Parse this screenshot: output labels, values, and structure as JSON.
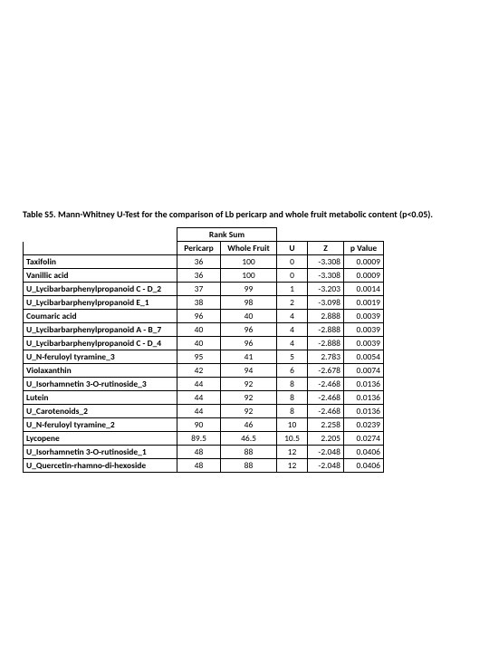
{
  "caption": "Table S5. Mann-Whitney U-Test for the comparison of Lb pericarp and whole fruit metabolic content (p<0.05).",
  "headers": {
    "rank_sum": "Rank Sum",
    "pericarp": "Pericarp",
    "whole_fruit": "Whole Fruit",
    "u": "U",
    "z": "Z",
    "p": "p Value"
  },
  "columns": {
    "name_width": 170,
    "pericarp_width": 48,
    "whole_width": 62,
    "u_width": 34,
    "z_width": 40,
    "p_width": 44
  },
  "rows": [
    {
      "name": "Taxifolin",
      "pericarp": "36",
      "whole": "100",
      "u": "0",
      "z": "-3.308",
      "p": "0.0009"
    },
    {
      "name": "Vanillic acid",
      "pericarp": "36",
      "whole": "100",
      "u": "0",
      "z": "-3.308",
      "p": "0.0009"
    },
    {
      "name": "U_Lycibarbarphenylpropanoid C - D_2",
      "pericarp": "37",
      "whole": "99",
      "u": "1",
      "z": "-3.203",
      "p": "0.0014"
    },
    {
      "name": "U_Lycibarbarphenylpropanoid E_1",
      "pericarp": "38",
      "whole": "98",
      "u": "2",
      "z": "-3.098",
      "p": "0.0019"
    },
    {
      "name": "Coumaric acid",
      "pericarp": "96",
      "whole": "40",
      "u": "4",
      "z": "2.888",
      "p": "0.0039"
    },
    {
      "name": "U_Lycibarbarphenylpropanoid A - B_7",
      "pericarp": "40",
      "whole": "96",
      "u": "4",
      "z": "-2.888",
      "p": "0.0039"
    },
    {
      "name": "U_Lycibarbarphenylpropanoid C - D_4",
      "pericarp": "40",
      "whole": "96",
      "u": "4",
      "z": "-2.888",
      "p": "0.0039"
    },
    {
      "name": "U_N-feruloyl tyramine_3",
      "pericarp": "95",
      "whole": "41",
      "u": "5",
      "z": "2.783",
      "p": "0.0054"
    },
    {
      "name": "Violaxanthin",
      "pericarp": "42",
      "whole": "94",
      "u": "6",
      "z": "-2.678",
      "p": "0.0074"
    },
    {
      "name": "U_Isorhamnetin 3-O-rutinoside_3",
      "pericarp": "44",
      "whole": "92",
      "u": "8",
      "z": "-2.468",
      "p": "0.0136"
    },
    {
      "name": "Lutein",
      "pericarp": "44",
      "whole": "92",
      "u": "8",
      "z": "-2.468",
      "p": "0.0136"
    },
    {
      "name": "U_Carotenoids_2",
      "pericarp": "44",
      "whole": "92",
      "u": "8",
      "z": "-2.468",
      "p": "0.0136"
    },
    {
      "name": "U_N-feruloyl tyramine_2",
      "pericarp": "90",
      "whole": "46",
      "u": "10",
      "z": "2.258",
      "p": "0.0239"
    },
    {
      "name": "Lycopene",
      "pericarp": "89.5",
      "whole": "46.5",
      "u": "10.5",
      "z": "2.205",
      "p": "0.0274"
    },
    {
      "name": "U_Isorhamnetin 3-O-rutinoside_1",
      "pericarp": "48",
      "whole": "88",
      "u": "12",
      "z": "-2.048",
      "p": "0.0406"
    },
    {
      "name": "U_Quercetin-rhamno-di-hexoside",
      "pericarp": "48",
      "whole": "88",
      "u": "12",
      "z": "-2.048",
      "p": "0.0406"
    }
  ]
}
